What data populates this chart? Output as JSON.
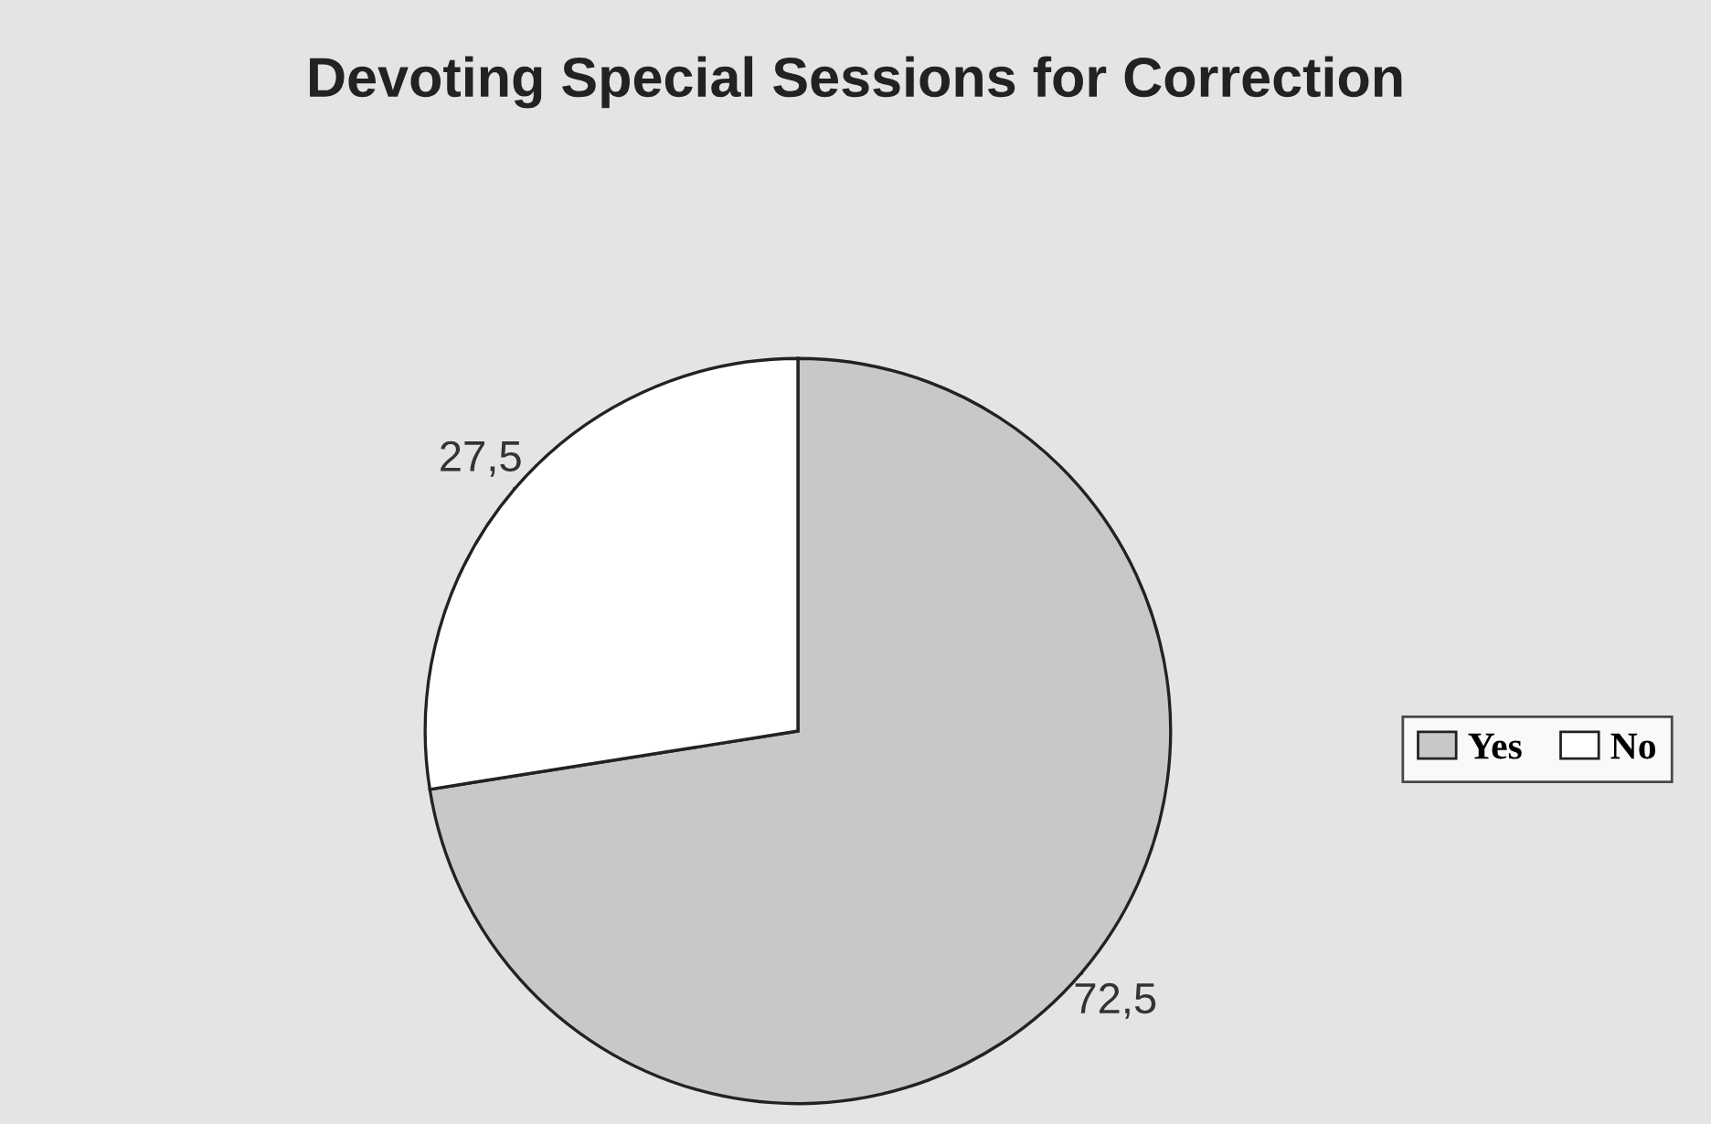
{
  "chart_data": {
    "type": "pie",
    "title": "Devoting Special Sessions for Correction",
    "categories": [
      "Yes",
      "No"
    ],
    "values": [
      72.5,
      27.5
    ],
    "value_labels": [
      "72,5",
      "27,5"
    ],
    "colors": [
      "#c8c8c8",
      "#ffffff"
    ],
    "legend": "right"
  }
}
